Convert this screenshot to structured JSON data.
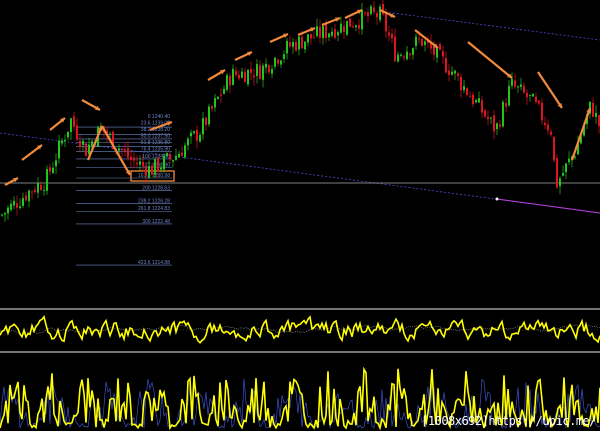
{
  "chart_data": {
    "type": "candlestick",
    "title": "",
    "close_path_prices": [
      1224.1,
      1228.8,
      1230.6,
      1241.7,
      1236.2,
      1240.2,
      1234.3,
      1232.5,
      1235.2,
      1239.9,
      1250.0,
      1251.0,
      1255.6,
      1258.4,
      1261.1,
      1261.1,
      1253.7,
      1256.5,
      1251.0,
      1243.6,
      1239.9,
      1248.2,
      1245.4,
      1239.9,
      1229.7,
      1236.2,
      1244.5,
      1239.9
    ],
    "horizontal_line_price": 1230.06,
    "fibonacci_levels": [
      {
        "level": "0",
        "price": 1240.4
      },
      {
        "level": "23.6",
        "price": 1239.0
      },
      {
        "level": "38.2",
        "price": 1238.2
      },
      {
        "level": "50.0",
        "price": 1237.5
      },
      {
        "level": "61.8",
        "price": 1236.8
      },
      {
        "level": "76.4",
        "price": 1235.9
      },
      {
        "level": "100",
        "price": 1234.5
      },
      {
        "level": "127",
        "price": 1232.9
      },
      {
        "level": "161.8",
        "price": 1230.98,
        "highlighted": true
      },
      {
        "level": "200",
        "price": 1228.63
      },
      {
        "level": "238.2",
        "price": 1226.28
      },
      {
        "level": "261.8",
        "price": 1224.83
      },
      {
        "level": "300",
        "price": 1222.48
      },
      {
        "level": "423.6",
        "price": 1214.88
      }
    ],
    "colors": {
      "up": "#22c51a",
      "down": "#e0141e",
      "oscillator": "#ffff00",
      "arrows": "#f08a3c",
      "fib": "#6f86c8",
      "trend": "#4a4ad8",
      "projection": "#c040e0"
    }
  },
  "watermark": "[1008x692]https://upic.me/"
}
